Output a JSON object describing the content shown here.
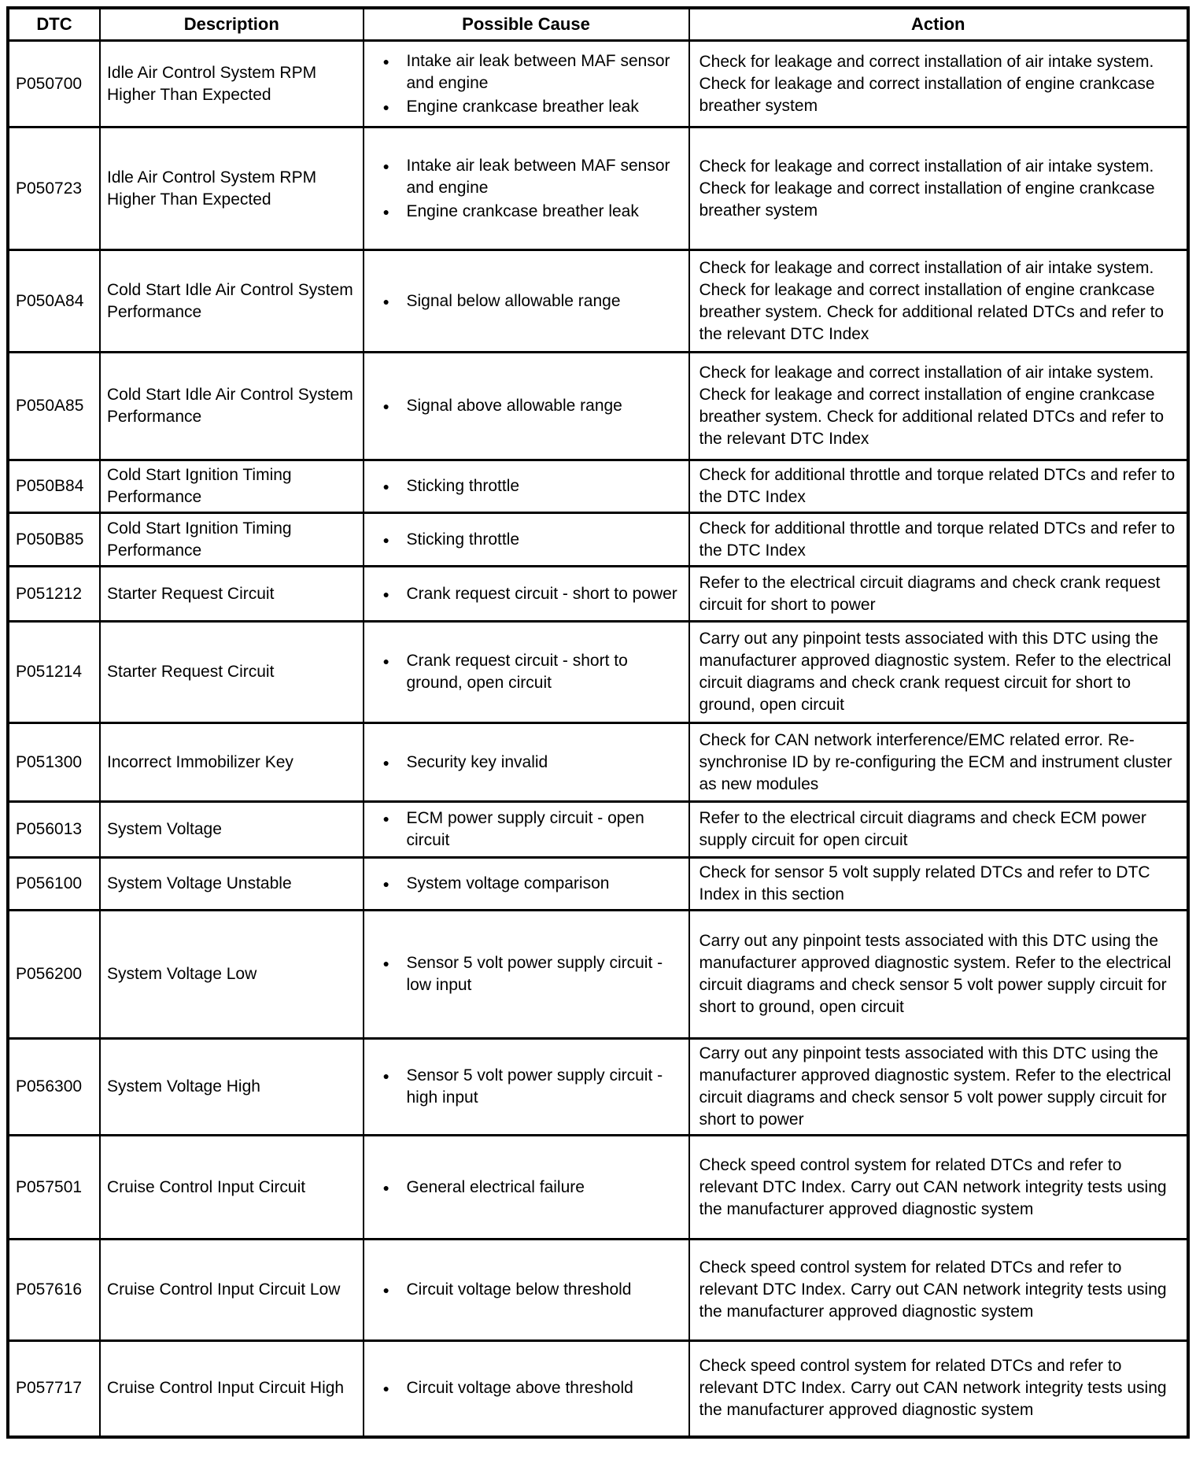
{
  "colors": {
    "background": "#ffffff",
    "text": "#000000",
    "border": "#000000"
  },
  "icons": {
    "bullet": "●"
  },
  "table": {
    "headers": {
      "dtc": "DTC",
      "description": "Description",
      "possible_cause": "Possible Cause",
      "action": "Action"
    },
    "rows": [
      {
        "dtc": "P050700",
        "description": "Idle Air Control System RPM Higher Than Expected",
        "causes": [
          "Intake air leak between MAF sensor and engine",
          "Engine crankcase breather leak"
        ],
        "action": "Check for leakage and correct installation of air intake system. Check for leakage and correct installation of engine crankcase breather system"
      },
      {
        "dtc": "P050723",
        "description": "Idle Air Control System RPM Higher Than Expected",
        "causes": [
          "Intake air leak between MAF sensor and engine",
          "Engine crankcase breather leak"
        ],
        "action": "Check for leakage and correct installation of air intake system. Check for leakage and correct installation of engine crankcase breather system"
      },
      {
        "dtc": "P050A84",
        "description": "Cold Start Idle Air Control System Performance",
        "causes": [
          "Signal below allowable range"
        ],
        "action": "Check for leakage and correct installation of air intake system. Check for leakage and correct installation of engine crankcase breather system. Check for additional related DTCs and refer to the relevant DTC Index"
      },
      {
        "dtc": "P050A85",
        "description": "Cold Start Idle Air Control System Performance",
        "causes": [
          "Signal above allowable range"
        ],
        "action": "Check for leakage and correct installation of air intake system. Check for leakage and correct installation of engine crankcase breather system. Check for additional related DTCs and refer to the relevant DTC Index"
      },
      {
        "dtc": "P050B84",
        "description": "Cold Start Ignition Timing Performance",
        "causes": [
          "Sticking throttle"
        ],
        "action": "Check for additional throttle and torque related DTCs and refer to the DTC Index"
      },
      {
        "dtc": "P050B85",
        "description": "Cold Start Ignition Timing Performance",
        "causes": [
          "Sticking throttle"
        ],
        "action": "Check for additional throttle and torque related DTCs and refer to the DTC Index"
      },
      {
        "dtc": "P051212",
        "description": "Starter Request Circuit",
        "causes": [
          "Crank request circuit - short to power"
        ],
        "action": "Refer to the electrical circuit diagrams and check crank request circuit for short to power"
      },
      {
        "dtc": "P051214",
        "description": "Starter Request Circuit",
        "causes": [
          "Crank request circuit - short to ground, open circuit"
        ],
        "action": "Carry out any pinpoint tests associated with this DTC using the manufacturer approved diagnostic system. Refer to the electrical circuit diagrams and check crank request circuit for short to ground, open circuit"
      },
      {
        "dtc": "P051300",
        "description": "Incorrect Immobilizer Key",
        "causes": [
          "Security key invalid"
        ],
        "action": "Check for CAN network interference/EMC related error. Re-synchronise ID by re-configuring the ECM and instrument cluster as new modules"
      },
      {
        "dtc": "P056013",
        "description": "System Voltage",
        "causes": [
          "ECM power supply circuit - open circuit"
        ],
        "action": "Refer to the electrical circuit diagrams and check ECM power supply circuit for open circuit"
      },
      {
        "dtc": "P056100",
        "description": "System Voltage Unstable",
        "causes": [
          "System voltage comparison"
        ],
        "action": "Check for sensor 5 volt supply related DTCs and refer to DTC Index in this section"
      },
      {
        "dtc": "P056200",
        "description": "System Voltage Low",
        "causes": [
          "Sensor 5 volt power supply circuit - low input"
        ],
        "action": "Carry out any pinpoint tests associated with this DTC using the manufacturer approved diagnostic system. Refer to the electrical circuit diagrams and check sensor 5 volt power supply circuit for short to ground, open circuit"
      },
      {
        "dtc": "P056300",
        "description": "System Voltage High",
        "causes": [
          "Sensor 5 volt power supply circuit - high input"
        ],
        "action": "Carry out any pinpoint tests associated with this DTC using the manufacturer approved diagnostic system. Refer to the electrical circuit diagrams and check sensor 5 volt power supply circuit for short to power"
      },
      {
        "dtc": "P057501",
        "description": "Cruise Control Input Circuit",
        "causes": [
          "General electrical failure"
        ],
        "action": "Check speed control system for related DTCs and refer to relevant DTC Index. Carry out CAN network integrity tests using the manufacturer approved diagnostic system"
      },
      {
        "dtc": "P057616",
        "description": "Cruise Control Input Circuit Low",
        "causes": [
          "Circuit voltage below threshold"
        ],
        "action": "Check speed control system for related DTCs and refer to relevant DTC Index. Carry out CAN network integrity tests using the manufacturer approved diagnostic system"
      },
      {
        "dtc": "P057717",
        "description": "Cruise Control Input Circuit High",
        "causes": [
          "Circuit voltage above threshold"
        ],
        "action": "Check speed control system for related DTCs and refer to relevant DTC Index. Carry out CAN network integrity tests using the manufacturer approved diagnostic system"
      }
    ]
  }
}
